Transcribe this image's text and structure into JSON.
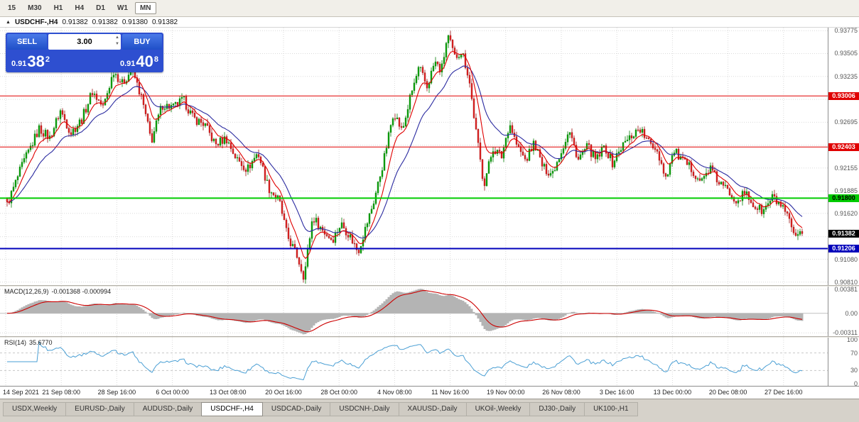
{
  "colors": {
    "up": "#0ca10c",
    "up_dark": "#067d06",
    "down": "#e02020",
    "down_dark": "#9c1515",
    "ma_fast": "#e00000",
    "ma_slow": "#2b2ba0",
    "grid": "#dadada",
    "macd_line": "#cc0000",
    "macd_hist": "#b4b4b4",
    "rsi_line": "#4a9fd4",
    "hline_red": "#e00000",
    "hline_green": "#00cc00",
    "hline_blue": "#0000bb",
    "bid_badge_bg": "#000000",
    "accent_blue": "#2e4fd0"
  },
  "toolbar": {
    "timeframes": [
      {
        "label": "15",
        "active": false
      },
      {
        "label": "M30",
        "active": false
      },
      {
        "label": "H1",
        "active": false
      },
      {
        "label": "H4",
        "active": false
      },
      {
        "label": "D1",
        "active": false
      },
      {
        "label": "W1",
        "active": false
      },
      {
        "label": "MN",
        "active": true
      }
    ]
  },
  "caption": {
    "marker": "▲",
    "symbol": "USDCHF-,H4",
    "open": "0.91382",
    "high": "0.91382",
    "low": "0.91380",
    "close": "0.91382"
  },
  "trade_panel": {
    "sell_label": "SELL",
    "buy_label": "BUY",
    "lot_size": "3.00",
    "spinner_up": "▲",
    "spinner_down": "▼",
    "sell_price_full": "0.91382",
    "buy_price_full": "0.91408",
    "sell_small": "0.91",
    "sell_big": "38",
    "sell_sup": "2",
    "buy_small": "0.91",
    "buy_big": "40",
    "buy_sup": "8"
  },
  "time_axis": {
    "labels": [
      "14 Sep 2021",
      "21 Sep 08:00",
      "28 Sep 16:00",
      "6 Oct 00:00",
      "13 Oct 08:00",
      "20 Oct 16:00",
      "28 Oct 00:00",
      "4 Nov 08:00",
      "11 Nov 16:00",
      "19 Nov 00:00",
      "26 Nov 08:00",
      "3 Dec 16:00",
      "13 Dec 00:00",
      "20 Dec 08:00",
      "27 Dec 16:00"
    ]
  },
  "tabs": [
    {
      "label": "USDX,Weekly",
      "active": false
    },
    {
      "label": "EURUSD-,Daily",
      "active": false
    },
    {
      "label": "AUDUSD-,Daily",
      "active": false
    },
    {
      "label": "USDCHF-,H4",
      "active": true
    },
    {
      "label": "USDCAD-,Daily",
      "active": false
    },
    {
      "label": "USDCNH-,Daily",
      "active": false
    },
    {
      "label": "XAUUSD-,Daily",
      "active": false
    },
    {
      "label": "UKOil-,Weekly",
      "active": false
    },
    {
      "label": "DJ30-,Daily",
      "active": false
    },
    {
      "label": "UK100-,H1",
      "active": false
    }
  ],
  "chart_data": {
    "type": "candlestick",
    "symbol": "USDCHF-",
    "timeframe": "H4",
    "title": "USDCHF-,H4",
    "ohlc": {
      "open": 0.91382,
      "high": 0.91382,
      "low": 0.9138,
      "close": 0.91382
    },
    "bid": 0.91382,
    "ask": 0.91408,
    "y_range": [
      0.90775,
      0.9381
    ],
    "price_ticks": [
      {
        "label": "0.93775",
        "value": 0.93775
      },
      {
        "label": "0.93505",
        "value": 0.93505
      },
      {
        "label": "0.93235",
        "value": 0.93235
      },
      {
        "label": "0.92695",
        "value": 0.92695
      },
      {
        "label": "0.92155",
        "value": 0.92155
      },
      {
        "label": "0.91885",
        "value": 0.91885
      },
      {
        "label": "0.91620",
        "value": 0.9162
      },
      {
        "label": "0.91080",
        "value": 0.9108
      },
      {
        "label": "0.90810",
        "value": 0.9081
      }
    ],
    "grid_prices": [
      0.93775,
      0.93505,
      0.93235,
      0.92965,
      0.92695,
      0.92425,
      0.92155,
      0.91885,
      0.9162,
      0.91345,
      0.9108,
      0.9081
    ],
    "hlines": [
      {
        "value": 0.93006,
        "label": "0.93006",
        "color": "#e00000",
        "width": 1,
        "badge_fg": "#ffffff"
      },
      {
        "value": 0.92403,
        "label": "0.92403",
        "color": "#e00000",
        "width": 1,
        "badge_fg": "#ffffff"
      },
      {
        "value": 0.918,
        "label": "0.91800",
        "color": "#00cc00",
        "width": 2,
        "badge_fg": "#000000"
      },
      {
        "value": 0.91206,
        "label": "0.91206",
        "color": "#0000bb",
        "width": 2,
        "badge_fg": "#ffffff"
      }
    ],
    "bid_badge": {
      "label": "0.91382",
      "value": 0.91382,
      "bg": "#000000",
      "fg": "#ffffff"
    },
    "first_bar_x": 10,
    "bar_step": 3,
    "bar_count": 374,
    "last_close": 0.91382,
    "ma_fast_period": 8,
    "ma_slow_period": 21,
    "close_path_anchors": [
      [
        0,
        0.9195
      ],
      [
        10,
        0.9172
      ],
      [
        30,
        0.9216
      ],
      [
        55,
        0.9262
      ],
      [
        70,
        0.9251
      ],
      [
        85,
        0.9283
      ],
      [
        100,
        0.9257
      ],
      [
        115,
        0.9273
      ],
      [
        130,
        0.9306
      ],
      [
        145,
        0.9287
      ],
      [
        160,
        0.933
      ],
      [
        172,
        0.9315
      ],
      [
        186,
        0.9332
      ],
      [
        200,
        0.9296
      ],
      [
        213,
        0.9247
      ],
      [
        228,
        0.929
      ],
      [
        244,
        0.9287
      ],
      [
        258,
        0.9296
      ],
      [
        272,
        0.9274
      ],
      [
        288,
        0.9267
      ],
      [
        303,
        0.9243
      ],
      [
        318,
        0.9251
      ],
      [
        333,
        0.9226
      ],
      [
        348,
        0.9214
      ],
      [
        363,
        0.9234
      ],
      [
        378,
        0.9192
      ],
      [
        393,
        0.9177
      ],
      [
        404,
        0.9136
      ],
      [
        418,
        0.9112
      ],
      [
        428,
        0.9087
      ],
      [
        440,
        0.9158
      ],
      [
        455,
        0.9141
      ],
      [
        468,
        0.9131
      ],
      [
        480,
        0.915
      ],
      [
        492,
        0.9136
      ],
      [
        504,
        0.9117
      ],
      [
        515,
        0.9146
      ],
      [
        526,
        0.9176
      ],
      [
        540,
        0.9224
      ],
      [
        554,
        0.9283
      ],
      [
        566,
        0.9258
      ],
      [
        578,
        0.9301
      ],
      [
        590,
        0.9334
      ],
      [
        601,
        0.9311
      ],
      [
        612,
        0.9341
      ],
      [
        621,
        0.9329
      ],
      [
        630,
        0.9372
      ],
      [
        640,
        0.9346
      ],
      [
        650,
        0.9354
      ],
      [
        660,
        0.9322
      ],
      [
        670,
        0.9258
      ],
      [
        681,
        0.9196
      ],
      [
        694,
        0.9239
      ],
      [
        706,
        0.9229
      ],
      [
        717,
        0.9269
      ],
      [
        728,
        0.9241
      ],
      [
        740,
        0.9224
      ],
      [
        752,
        0.9246
      ],
      [
        764,
        0.9216
      ],
      [
        777,
        0.9209
      ],
      [
        790,
        0.9236
      ],
      [
        801,
        0.9259
      ],
      [
        814,
        0.9226
      ],
      [
        827,
        0.9241
      ],
      [
        839,
        0.9224
      ],
      [
        851,
        0.9241
      ],
      [
        862,
        0.9221
      ],
      [
        875,
        0.9241
      ],
      [
        888,
        0.9253
      ],
      [
        900,
        0.9263
      ],
      [
        912,
        0.9246
      ],
      [
        924,
        0.9239
      ],
      [
        937,
        0.9205
      ],
      [
        949,
        0.9236
      ],
      [
        961,
        0.9223
      ],
      [
        974,
        0.9214
      ],
      [
        987,
        0.9199
      ],
      [
        999,
        0.9216
      ],
      [
        1011,
        0.9199
      ],
      [
        1024,
        0.9189
      ],
      [
        1037,
        0.9178
      ],
      [
        1049,
        0.9186
      ],
      [
        1061,
        0.9171
      ],
      [
        1074,
        0.9164
      ],
      [
        1087,
        0.9181
      ],
      [
        1099,
        0.9171
      ],
      [
        1111,
        0.9152
      ],
      [
        1120,
        0.9131
      ],
      [
        1129,
        0.9138
      ]
    ],
    "indicators": [
      {
        "name": "MACD",
        "label": "MACD(12,26,9)",
        "values_text": "-0.001368 -0.000994",
        "fast": 12,
        "slow": 26,
        "signal": 9,
        "current_main": -0.001368,
        "current_signal": -0.000994,
        "y_range": [
          -0.0034,
          0.004
        ],
        "y_ticks": [
          {
            "label": "0.00381",
            "value": 0.00381
          },
          {
            "label": "0.00",
            "value": 0
          },
          {
            "label": "-0.00311",
            "value": -0.00311
          }
        ]
      },
      {
        "name": "RSI",
        "label": "RSI(14)",
        "values_text": "35.6770",
        "period": 14,
        "current": 35.677,
        "levels": [
          70,
          30
        ],
        "y_range": [
          0,
          100
        ],
        "y_ticks": [
          {
            "label": "100",
            "value": 100
          },
          {
            "label": "70",
            "value": 70
          },
          {
            "label": "30",
            "value": 30
          },
          {
            "label": "0",
            "value": 0
          }
        ]
      }
    ]
  }
}
